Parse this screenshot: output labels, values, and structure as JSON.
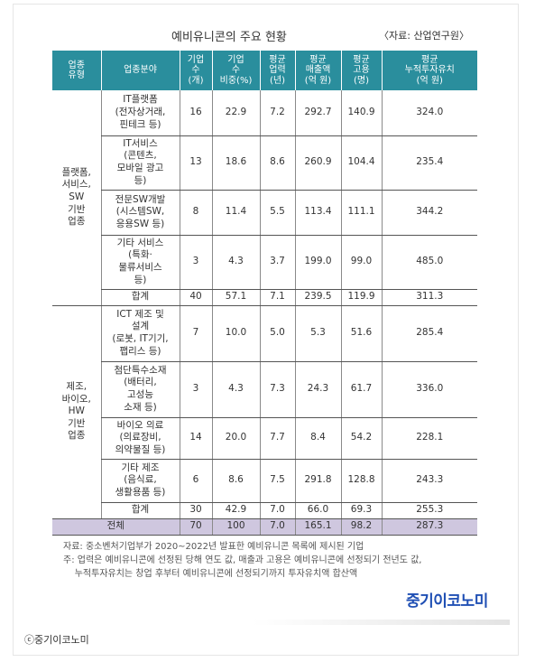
{
  "title": "예비유니콘의 주요 현황",
  "source": "〈자료: 산업연구원〉",
  "headers": [
    "업종\n유형",
    "업종분야",
    "기업\n수\n(개)",
    "기업\n수\n비중(%)",
    "평균\n업력\n(년)",
    "평균\n매출액\n(억 원)",
    "평균\n고용\n(명)",
    "평균\n누적투자유치\n(억 원)"
  ],
  "groups": [
    {
      "name": "플랫폼,\n서비스,\nSW\n기반\n업종",
      "rows": [
        {
          "field": "IT플랫폼\n(전자상거래,\n핀테크 등)",
          "count": "16",
          "share": "22.9",
          "age": "7.2",
          "sales": "292.7",
          "employ": "140.9",
          "invest": "324.0"
        },
        {
          "field": "IT서비스\n(콘텐츠,\n모바일 광고\n등)",
          "count": "13",
          "share": "18.6",
          "age": "8.6",
          "sales": "260.9",
          "employ": "104.4",
          "invest": "235.4"
        },
        {
          "field": "전문SW개발\n(시스템SW,\n응용SW 등)",
          "count": "8",
          "share": "11.4",
          "age": "5.5",
          "sales": "113.4",
          "employ": "111.1",
          "invest": "344.2"
        },
        {
          "field": "기타 서비스\n(특화·\n물류서비스\n등)",
          "count": "3",
          "share": "4.3",
          "age": "3.7",
          "sales": "199.0",
          "employ": "99.0",
          "invest": "485.0"
        }
      ],
      "subtotal": {
        "field": "합계",
        "count": "40",
        "share": "57.1",
        "age": "7.1",
        "sales": "239.5",
        "employ": "119.9",
        "invest": "311.3"
      }
    },
    {
      "name": "제조,\n바이오,\nHW\n기반\n업종",
      "rows": [
        {
          "field": "ICT 제조 및\n설계\n(로봇, IT기기,\n팹리스 등)",
          "count": "7",
          "share": "10.0",
          "age": "5.0",
          "sales": "5.3",
          "employ": "51.6",
          "invest": "285.4"
        },
        {
          "field": "첨단특수소재\n(배터리,\n고성능\n소재 등)",
          "count": "3",
          "share": "4.3",
          "age": "7.3",
          "sales": "24.3",
          "employ": "61.7",
          "invest": "336.0"
        },
        {
          "field": "바이오 의료\n(의료장비,\n의약물질 등)",
          "count": "14",
          "share": "20.0",
          "age": "7.7",
          "sales": "8.4",
          "employ": "54.2",
          "invest": "228.1"
        },
        {
          "field": "기타 제조\n(음식료,\n생활용품 등)",
          "count": "6",
          "share": "8.6",
          "age": "7.5",
          "sales": "291.8",
          "employ": "128.8",
          "invest": "243.3"
        }
      ],
      "subtotal": {
        "field": "합계",
        "count": "30",
        "share": "42.9",
        "age": "7.0",
        "sales": "66.0",
        "employ": "69.3",
        "invest": "255.3"
      }
    }
  ],
  "total": {
    "label": "전체",
    "count": "70",
    "share": "100",
    "age": "7.0",
    "sales": "165.1",
    "employ": "98.2",
    "invest": "287.3"
  },
  "notes": [
    "자료: 중소벤처기업부가 2020~2022년 발표한 예비유니콘 목록에 제시된 기업",
    "주: 업력은 예비유니콘에 선정된 당해 연도 값, 매출과 고용은 예비유니콘에 선정되기 전년도 값,",
    "    누적투자유치는 창업 후부터 예비유니콘에 선정되기까지 투자유치액 합산액"
  ],
  "logo": "중기이코노미",
  "credit": "ⓒ중기이코노미",
  "colors": {
    "header": "#2a8e9d",
    "total_row": "#cfc7df",
    "logo": "#1f4fb4"
  }
}
